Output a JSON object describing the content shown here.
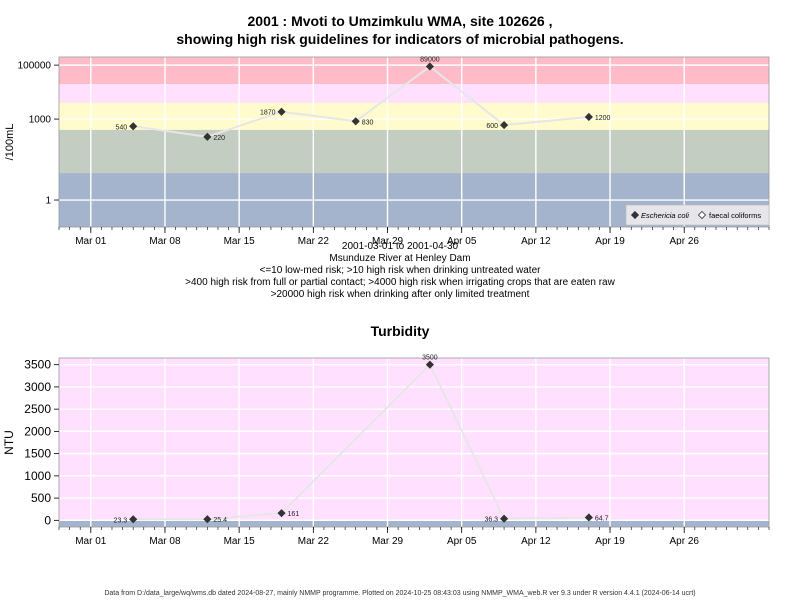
{
  "page": {
    "title_line1": "2001 : Mvoti to Umzimkulu WMA, site 102626 ,",
    "title_line2": "showing high risk guidelines for indicators of microbial pathogens.",
    "caption_lines": [
      "2001-03-01 to 2001-04-30",
      "Msunduze River at Henley Dam",
      "<=10 low-med risk; >10 high risk when drinking untreated water",
      ">400 high risk from full or partial contact; >4000 high risk when irrigating crops that are eaten raw",
      ">20000 high risk when drinking after only limited treatment"
    ],
    "turbidity_title": "Turbidity",
    "footer": "Data from D:/data_large/wq/wms.db dated 2024-08-27, mainly NMMP programme. Plotted on 2024-10-25 08:43:03 using NMMP_WMA_web.R ver 9.3 under R version 4.4.1 (2024-06-14 ucrt)"
  },
  "colors": {
    "band_blue": "#a3b4cc",
    "band_green": "#c4cdc2",
    "band_yellow": "#fffbcc",
    "band_pink": "#ffe0ff",
    "band_red": "#ffbcc8",
    "turbidity_bg": "#ffe0ff",
    "line": "#e6e6e6",
    "marker": "#333333"
  },
  "chart_data": [
    {
      "type": "line",
      "title": "",
      "ylabel": "/100mL",
      "y_scale": "log",
      "xlim": [
        "2001-02-26",
        "2001-05-04"
      ],
      "ylim": [
        0.1,
        200000
      ],
      "y_ticks": [
        1,
        1000,
        100000
      ],
      "y_tick_labels": [
        "1",
        "1000",
        "100000"
      ],
      "x_ticks": [
        "2001-03-01",
        "2001-03-08",
        "2001-03-15",
        "2001-03-22",
        "2001-03-29",
        "2001-04-05",
        "2001-04-12",
        "2001-04-19",
        "2001-04-26"
      ],
      "x_tick_labels": [
        "Mar 01",
        "Mar 08",
        "Mar 15",
        "Mar 22",
        "Mar 29",
        "Apr 05",
        "Apr 12",
        "Apr 19",
        "Apr 26"
      ],
      "grid": true,
      "risk_bands": [
        {
          "from": 0.1,
          "to": 10,
          "color": "band_blue"
        },
        {
          "from": 10,
          "to": 400,
          "color": "band_green"
        },
        {
          "from": 400,
          "to": 4000,
          "color": "band_yellow"
        },
        {
          "from": 4000,
          "to": 20000,
          "color": "band_pink"
        },
        {
          "from": 20000,
          "to": 200000,
          "color": "band_red"
        }
      ],
      "series": [
        {
          "name": "Eschericia coli",
          "marker": "filled-diamond",
          "x": [
            "2001-03-05",
            "2001-03-12",
            "2001-03-19",
            "2001-03-26",
            "2001-04-02",
            "2001-04-09",
            "2001-04-17"
          ],
          "values": [
            540,
            220,
            1870,
            830,
            89000,
            600,
            1200
          ],
          "data_labels": [
            "540",
            "220",
            "1870",
            "830",
            "89000",
            "600",
            "1200"
          ],
          "label_sides": [
            "left",
            "right",
            "left",
            "right",
            "top",
            "left",
            "right"
          ]
        }
      ],
      "legend": {
        "position": "bottom-right",
        "entries": [
          {
            "label": "Eschericia coli",
            "marker": "filled-diamond",
            "italic": true
          },
          {
            "label": "faecal coliforms",
            "marker": "open-diamond",
            "italic": false
          }
        ]
      }
    },
    {
      "type": "line",
      "title": "Turbidity",
      "ylabel": "NTU",
      "y_scale": "linear",
      "xlim": [
        "2001-02-26",
        "2001-05-04"
      ],
      "ylim": [
        -150,
        3650
      ],
      "y_ticks": [
        0,
        500,
        1000,
        1500,
        2000,
        2500,
        3000,
        3500
      ],
      "y_tick_labels": [
        "0",
        "500",
        "1000",
        "1500",
        "2000",
        "2500",
        "3000",
        "3500"
      ],
      "x_ticks": [
        "2001-03-01",
        "2001-03-08",
        "2001-03-15",
        "2001-03-22",
        "2001-03-29",
        "2001-04-05",
        "2001-04-12",
        "2001-04-19",
        "2001-04-26"
      ],
      "x_tick_labels": [
        "Mar 01",
        "Mar 08",
        "Mar 15",
        "Mar 22",
        "Mar 29",
        "Apr 05",
        "Apr 12",
        "Apr 19",
        "Apr 26"
      ],
      "grid": true,
      "baseline_band": {
        "from": -150,
        "to": 0,
        "color": "band_blue"
      },
      "series": [
        {
          "x": [
            "2001-03-05",
            "2001-03-12",
            "2001-03-19",
            "2001-04-02",
            "2001-04-09",
            "2001-04-17"
          ],
          "values": [
            23.3,
            25.4,
            161,
            3500,
            36.3,
            64.7
          ],
          "data_labels": [
            "23.3",
            "25.4",
            "161",
            "3500",
            "36.3",
            "64.7"
          ],
          "label_sides": [
            "left",
            "right",
            "right",
            "top",
            "left",
            "right"
          ]
        }
      ]
    }
  ]
}
